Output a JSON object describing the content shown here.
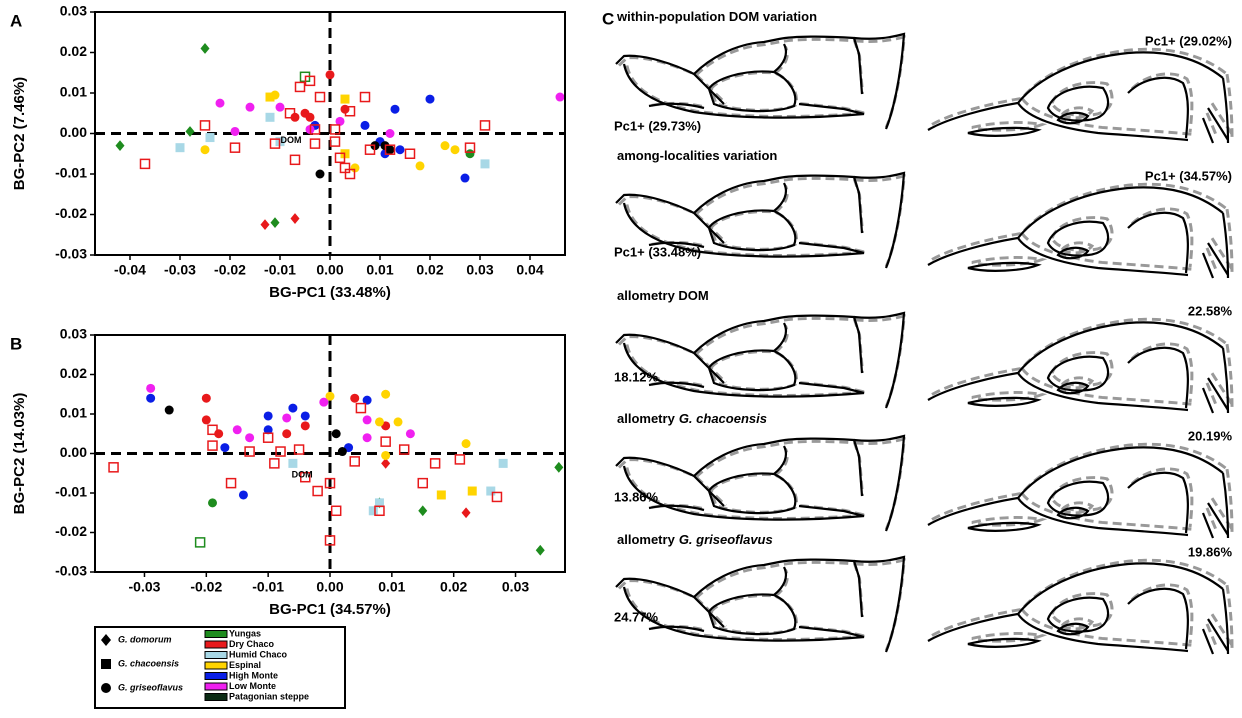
{
  "chart_data": [
    {
      "type": "scatter",
      "panel_label": "A",
      "xlabel": "BG-PC1 (33.48%)",
      "ylabel": "BG-PC2 (7.46%)",
      "xlim": [
        -0.047,
        0.047
      ],
      "ylim": [
        -0.03,
        0.03
      ],
      "xticks": [
        -0.04,
        -0.03,
        -0.02,
        -0.01,
        {
          "value": 0,
          "label": "0.00"
        },
        0.01,
        0.02,
        0.03,
        0.04
      ],
      "yticks": [
        0.03,
        0.02,
        0.01,
        {
          "value": 0,
          "label": "0.00"
        },
        -0.01,
        -0.02,
        -0.03
      ],
      "annotations": [
        {
          "text": "DOM",
          "x": -0.0078,
          "y": -0.0017
        }
      ],
      "series": [
        {
          "marker": "diamond",
          "color": "#1e8c1e",
          "filled": true,
          "x": [
            -0.025,
            -0.042,
            -0.028,
            -0.011
          ],
          "y": [
            0.021,
            -0.003,
            0.0005,
            -0.022
          ]
        },
        {
          "marker": "diamond",
          "color": "#e8191b",
          "filled": true,
          "x": [
            -0.013,
            -0.007
          ],
          "y": [
            -0.0225,
            -0.021
          ]
        },
        {
          "marker": "circle",
          "color": "#1e8c1e",
          "filled": true,
          "x": [
            0.028
          ],
          "y": [
            -0.005
          ]
        },
        {
          "marker": "square",
          "color": "#1e8c1e",
          "filled": false,
          "x": [
            -0.005
          ],
          "y": [
            0.014
          ]
        },
        {
          "marker": "circle",
          "color": "#e8191b",
          "filled": true,
          "x": [
            0.0,
            -0.007,
            -0.005,
            -0.004,
            0.003
          ],
          "y": [
            0.0145,
            0.004,
            0.005,
            0.004,
            0.006
          ]
        },
        {
          "marker": "square",
          "color": "#ffd400",
          "filled": true,
          "x": [
            -0.012,
            0.003,
            0.003
          ],
          "y": [
            0.009,
            0.0085,
            -0.005
          ]
        },
        {
          "marker": "circle",
          "color": "#ffd400",
          "filled": true,
          "x": [
            -0.011,
            -0.025,
            0.018,
            0.023,
            0.025,
            0.005
          ],
          "y": [
            0.0095,
            -0.004,
            -0.008,
            -0.003,
            -0.004,
            -0.0085
          ]
        },
        {
          "marker": "square",
          "color": "#a8d8e6",
          "filled": true,
          "x": [
            -0.03,
            -0.024,
            -0.012,
            -0.01,
            0.031
          ],
          "y": [
            -0.0035,
            -0.001,
            0.004,
            -0.002,
            -0.0075
          ]
        },
        {
          "marker": "circle",
          "color": "#0a1ee6",
          "filled": true,
          "x": [
            0.013,
            0.02,
            0.007,
            0.01,
            0.011,
            0.014,
            0.027,
            -0.003
          ],
          "y": [
            0.006,
            0.0085,
            0.002,
            -0.002,
            -0.005,
            -0.004,
            -0.011,
            0.002
          ]
        },
        {
          "marker": "circle",
          "color": "#f020f0",
          "filled": true,
          "x": [
            -0.022,
            -0.016,
            -0.019,
            -0.01,
            0.002,
            0.012,
            0.046,
            -0.004
          ],
          "y": [
            0.0075,
            0.0065,
            0.0005,
            0.0065,
            0.003,
            0.0,
            0.009,
            0.001
          ]
        },
        {
          "marker": "circle",
          "color": "#000000",
          "filled": true,
          "x": [
            -0.002,
            0.009,
            0.011,
            0.012
          ],
          "y": [
            -0.01,
            -0.003,
            -0.003,
            -0.004
          ]
        },
        {
          "marker": "square",
          "color": "#e8191b",
          "filled": false,
          "x": [
            -0.037,
            -0.025,
            -0.019,
            -0.011,
            -0.007,
            -0.008,
            -0.006,
            -0.004,
            -0.002,
            -0.003,
            0.001,
            0.001,
            0.004,
            0.007,
            0.002,
            0.004,
            0.008,
            0.012,
            0.016,
            0.028,
            0.031,
            -0.003,
            0.003
          ],
          "y": [
            -0.0075,
            0.002,
            -0.0035,
            -0.0025,
            -0.0065,
            0.005,
            0.0115,
            0.013,
            0.009,
            0.001,
            0.001,
            -0.002,
            0.0055,
            0.009,
            -0.006,
            -0.01,
            -0.004,
            -0.004,
            -0.005,
            -0.0035,
            0.002,
            -0.0025,
            -0.0085
          ]
        }
      ]
    },
    {
      "type": "scatter",
      "panel_label": "B",
      "xlabel": "BG-PC1 (34.57%)",
      "ylabel": "BG-PC2 (14.03%)",
      "xlim": [
        -0.038,
        0.038
      ],
      "ylim": [
        -0.03,
        0.03
      ],
      "xticks": [
        -0.03,
        -0.02,
        -0.01,
        {
          "value": 0,
          "label": "0.00"
        },
        0.01,
        0.02,
        0.03
      ],
      "yticks": [
        0.03,
        0.02,
        0.01,
        {
          "value": 0,
          "label": "0.00"
        },
        -0.01,
        -0.02,
        -0.03
      ],
      "annotations": [
        {
          "text": "DOM",
          "x": -0.0045,
          "y": -0.0055
        }
      ],
      "series": [
        {
          "marker": "diamond",
          "color": "#1e8c1e",
          "filled": true,
          "x": [
            0.037,
            0.034,
            0.015,
            0.008
          ],
          "y": [
            -0.0035,
            -0.0245,
            -0.0145,
            -0.0125
          ]
        },
        {
          "marker": "diamond",
          "color": "#e8191b",
          "filled": true,
          "x": [
            0.022,
            0.009
          ],
          "y": [
            -0.015,
            -0.0025
          ]
        },
        {
          "marker": "circle",
          "color": "#1e8c1e",
          "filled": true,
          "x": [
            -0.019
          ],
          "y": [
            -0.0125
          ]
        },
        {
          "marker": "square",
          "color": "#1e8c1e",
          "filled": false,
          "x": [
            -0.021
          ],
          "y": [
            -0.0225
          ]
        },
        {
          "marker": "circle",
          "color": "#e8191b",
          "filled": true,
          "x": [
            -0.02,
            -0.02,
            -0.018,
            -0.007,
            -0.004,
            0.004,
            0.009
          ],
          "y": [
            0.014,
            0.0085,
            0.005,
            0.005,
            0.007,
            0.014,
            0.007
          ]
        },
        {
          "marker": "square",
          "color": "#ffd400",
          "filled": true,
          "x": [
            0.018,
            0.023
          ],
          "y": [
            -0.0105,
            -0.0095
          ]
        },
        {
          "marker": "circle",
          "color": "#ffd400",
          "filled": true,
          "x": [
            0.0,
            0.009,
            0.008,
            0.011,
            0.022,
            0.009
          ],
          "y": [
            0.0145,
            0.015,
            0.008,
            0.008,
            0.0025,
            -0.0005
          ]
        },
        {
          "marker": "square",
          "color": "#a8d8e6",
          "filled": true,
          "x": [
            -0.006,
            0.007,
            0.026,
            0.028,
            0.008
          ],
          "y": [
            -0.0025,
            -0.0145,
            -0.0095,
            -0.0025,
            -0.0125
          ]
        },
        {
          "marker": "circle",
          "color": "#0a1ee6",
          "filled": true,
          "x": [
            -0.029,
            -0.017,
            -0.014,
            -0.01,
            -0.01,
            -0.006,
            -0.004,
            0.006,
            0.003
          ],
          "y": [
            0.014,
            0.0015,
            -0.0105,
            0.0095,
            0.006,
            0.0115,
            0.0095,
            0.0135,
            0.0015
          ]
        },
        {
          "marker": "circle",
          "color": "#f020f0",
          "filled": true,
          "x": [
            -0.029,
            -0.015,
            -0.007,
            -0.001,
            0.006,
            0.006,
            0.013,
            -0.013
          ],
          "y": [
            0.0165,
            0.006,
            0.009,
            0.013,
            0.0085,
            0.004,
            0.005,
            0.004
          ]
        },
        {
          "marker": "circle",
          "color": "#000000",
          "filled": true,
          "x": [
            -0.026,
            0.001,
            0.002
          ],
          "y": [
            0.011,
            0.005,
            0.0005
          ]
        },
        {
          "marker": "square",
          "color": "#e8191b",
          "filled": false,
          "x": [
            -0.035,
            -0.019,
            -0.019,
            -0.016,
            -0.013,
            -0.01,
            -0.008,
            -0.005,
            -0.009,
            -0.004,
            -0.002,
            0.0,
            0.001,
            0.0,
            0.004,
            0.008,
            0.012,
            0.015,
            0.017,
            0.021,
            0.027,
            0.005,
            0.009
          ],
          "y": [
            -0.0035,
            0.006,
            0.002,
            -0.0075,
            0.0005,
            0.004,
            0.0005,
            0.001,
            -0.0025,
            -0.006,
            -0.0095,
            -0.0075,
            -0.0145,
            -0.022,
            -0.002,
            -0.0145,
            0.001,
            -0.0075,
            -0.0025,
            -0.0015,
            -0.011,
            0.0115,
            0.003
          ]
        }
      ]
    }
  ],
  "legend": {
    "species": [
      {
        "name": "G. domorum",
        "marker": "diamond"
      },
      {
        "name": "G. chacoensis",
        "marker": "square"
      },
      {
        "name": "G. griseoflavus",
        "marker": "circle"
      }
    ],
    "regions": [
      {
        "name": "Yungas",
        "color": "#1e8c1e"
      },
      {
        "name": "Dry Chaco",
        "color": "#e8191b"
      },
      {
        "name": "Humid Chaco",
        "color": "#a8d8e6"
      },
      {
        "name": "Espinal",
        "color": "#ffd400"
      },
      {
        "name": "High Monte",
        "color": "#0a1ee6"
      },
      {
        "name": "Low Monte",
        "color": "#f020f0"
      },
      {
        "name": "Patagonian steppe",
        "color": "#0b2b14"
      }
    ]
  },
  "panel_c": {
    "label": "C",
    "rows": [
      {
        "title": [
          "within-population DOM variation"
        ],
        "left": "Pc1+ (29.73%)",
        "right": "Pc1+ (29.02%)"
      },
      {
        "title": [
          "among-localities variation"
        ],
        "left": "Pc1+ (33.48%)",
        "right": "Pc1+ (34.57%)"
      },
      {
        "title": [
          "allometry DOM"
        ],
        "left": "18.12%",
        "right": "22.58%"
      },
      {
        "title": [
          "allometry",
          "G. chacoensis"
        ],
        "left": "13.86%",
        "right": "20.19%"
      },
      {
        "title": [
          "allometry",
          "G. griseoflavus"
        ],
        "left": "24.77%",
        "right": "19.86%"
      }
    ]
  }
}
